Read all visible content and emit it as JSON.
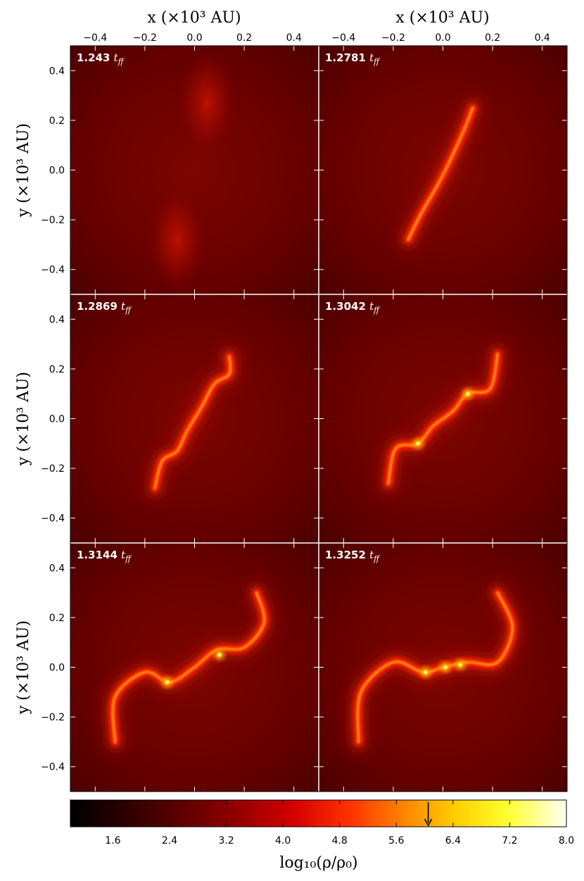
{
  "figure": {
    "x_axis_title": "x (×10³ AU)",
    "y_axis_title": "y (×10³ AU)",
    "x_tick_labels": [
      "−0.4",
      "−0.2",
      "0.0",
      "0.2",
      "0.4"
    ],
    "y_tick_labels": [
      "0.4",
      "0.2",
      "0.0",
      "−0.2",
      "−0.4"
    ],
    "colorbar_label": "log₁₀(ρ/ρ₀)",
    "colorbar_tick_labels": [
      "1.6",
      "2.4",
      "3.2",
      "4.0",
      "4.8",
      "5.6",
      "6.4",
      "7.2",
      "8.0"
    ],
    "panel_time_unit": "t_ff",
    "colors": {
      "background": "#6a0000",
      "filament_mid": "#ff2a00",
      "filament_core": "#ffd21a",
      "divider": "#ffffff"
    }
  },
  "chart_data": {
    "type": "heatmap",
    "layout": "3 rows x 2 columns, shared axes",
    "xlabel": "x (×10³ AU)",
    "ylabel": "y (×10³ AU)",
    "xlim": [
      -0.5,
      0.5
    ],
    "ylim": [
      -0.5,
      0.5
    ],
    "x_ticks": [
      -0.4,
      -0.2,
      0.0,
      0.2,
      0.4
    ],
    "y_ticks": [
      -0.4,
      -0.2,
      0.0,
      0.2,
      0.4
    ],
    "colorbar": {
      "label": "log₁₀(ρ/ρ₀)",
      "range": [
        1.0,
        8.0
      ],
      "ticks": [
        1.6,
        2.4,
        3.2,
        4.0,
        4.8,
        5.6,
        6.4,
        7.2,
        8.0
      ],
      "marker_value": 6.05,
      "colormap": "hot"
    },
    "panels": [
      {
        "time": "1.243",
        "unit": "t_ff",
        "peaks": [
          [
            0.05,
            0.27
          ],
          [
            -0.07,
            -0.28
          ]
        ],
        "structure": "two-blobs"
      },
      {
        "time": "1.2781",
        "unit": "t_ff",
        "filament": [
          [
            -0.14,
            -0.28
          ],
          [
            -0.09,
            -0.18
          ],
          [
            0.0,
            -0.02
          ],
          [
            0.08,
            0.15
          ],
          [
            0.12,
            0.25
          ]
        ],
        "structure": "straight-filament"
      },
      {
        "time": "1.2869",
        "unit": "t_ff",
        "filament": [
          [
            -0.16,
            -0.28
          ],
          [
            -0.13,
            -0.17
          ],
          [
            -0.07,
            -0.13
          ],
          [
            -0.03,
            -0.05
          ],
          [
            0.03,
            0.05
          ],
          [
            0.08,
            0.14
          ],
          [
            0.14,
            0.18
          ],
          [
            0.14,
            0.25
          ]
        ],
        "structure": "s-filament"
      },
      {
        "time": "1.3042",
        "unit": "t_ff",
        "filament": [
          [
            -0.22,
            -0.26
          ],
          [
            -0.19,
            -0.12
          ],
          [
            -0.1,
            -0.1
          ],
          [
            -0.04,
            -0.03
          ],
          [
            0.04,
            0.03
          ],
          [
            0.1,
            0.1
          ],
          [
            0.19,
            0.12
          ],
          [
            0.22,
            0.26
          ]
        ],
        "cores": [
          [
            -0.1,
            -0.1
          ],
          [
            0.1,
            0.1
          ]
        ],
        "structure": "two-cores"
      },
      {
        "time": "1.3144",
        "unit": "t_ff",
        "filament": [
          [
            -0.32,
            -0.3
          ],
          [
            -0.32,
            -0.12
          ],
          [
            -0.2,
            -0.02
          ],
          [
            -0.1,
            -0.06
          ],
          [
            0.0,
            0.0
          ],
          [
            0.09,
            0.07
          ],
          [
            0.2,
            0.08
          ],
          [
            0.28,
            0.18
          ],
          [
            0.25,
            0.3
          ]
        ],
        "cores": [
          [
            -0.11,
            -0.06
          ],
          [
            0.1,
            0.05
          ]
        ],
        "structure": "spiral-arms"
      },
      {
        "time": "1.3252",
        "unit": "t_ff",
        "filament": [
          [
            -0.34,
            -0.3
          ],
          [
            -0.33,
            -0.1
          ],
          [
            -0.2,
            0.02
          ],
          [
            -0.08,
            -0.02
          ],
          [
            0.0,
            0.0
          ],
          [
            0.1,
            0.02
          ],
          [
            0.22,
            0.02
          ],
          [
            0.28,
            0.16
          ],
          [
            0.22,
            0.3
          ]
        ],
        "cores": [
          [
            -0.07,
            -0.02
          ],
          [
            0.01,
            0.0
          ],
          [
            0.07,
            0.01
          ]
        ],
        "structure": "multiple-cores"
      }
    ]
  }
}
